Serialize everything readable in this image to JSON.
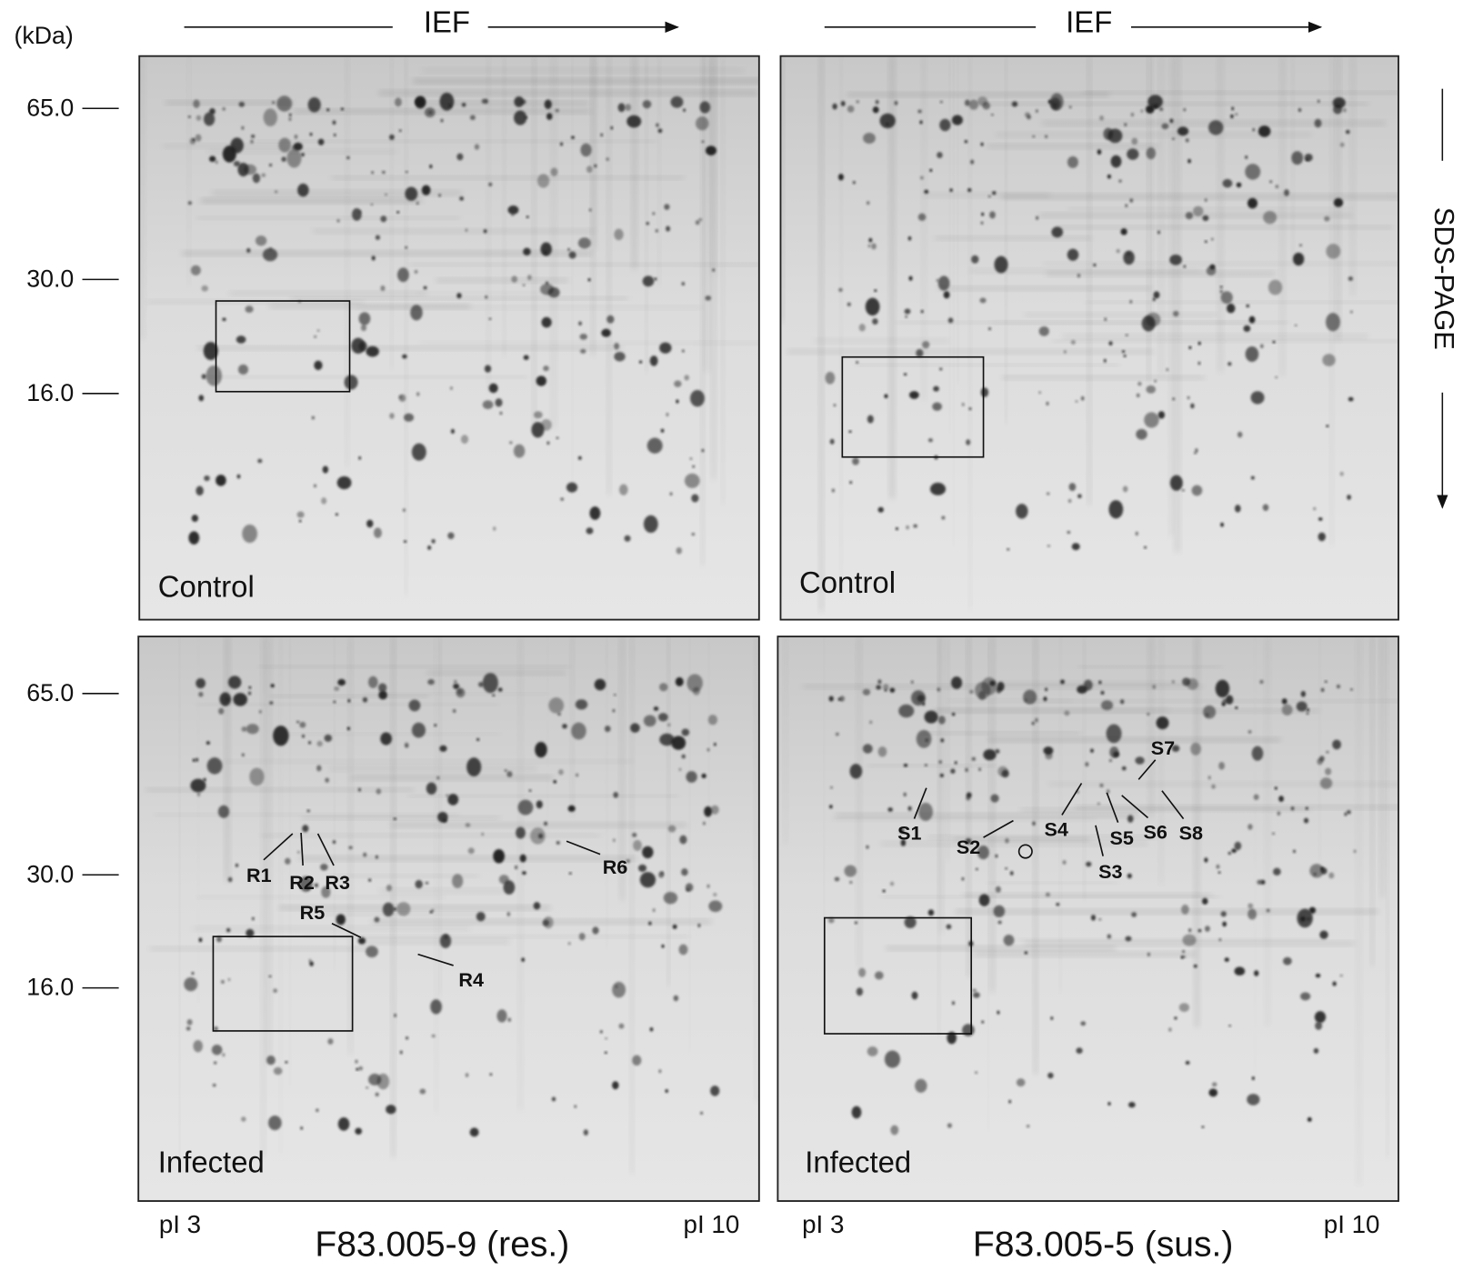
{
  "header": {
    "unit": "(kDa)",
    "ief": [
      "IEF",
      "IEF"
    ],
    "sds": "SDS-PAGE"
  },
  "mw_markers": {
    "top": [
      "65.0",
      "30.0",
      "16.0"
    ],
    "bottom": [
      "65.0",
      "30.0",
      "16.0"
    ]
  },
  "gels": [
    {
      "label": "Control"
    },
    {
      "label": "Control"
    },
    {
      "label": "Infected",
      "spots": [
        "R1",
        "R2",
        "R3",
        "R5",
        "R4",
        "R6"
      ]
    },
    {
      "label": "Infected",
      "spots": [
        "S1",
        "S2",
        "S4",
        "S5",
        "S6",
        "S8",
        "S7",
        "S3"
      ]
    }
  ],
  "columns": [
    {
      "name": "F83.005-9 (res.)",
      "pi_low": "pI 3",
      "pi_high": "pI 10"
    },
    {
      "name": "F83.005-5 (sus.)",
      "pi_low": "pI 3",
      "pi_high": "pI 10"
    }
  ]
}
